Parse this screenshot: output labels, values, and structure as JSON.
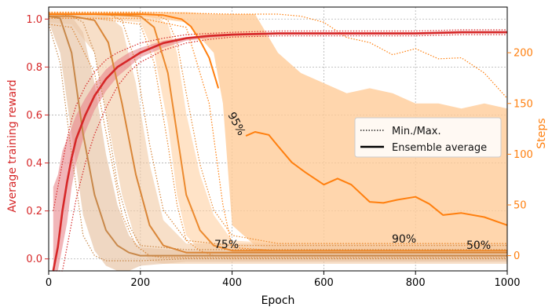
{
  "chart_data": {
    "type": "line",
    "xlabel": "Epoch",
    "ylabel_left": "Average training reward",
    "ylabel_right": "Steps",
    "xlim": [
      0,
      1000
    ],
    "ylim_left": [
      -0.05,
      1.05
    ],
    "ylim_right": [
      -15,
      245
    ],
    "xticks": [
      0,
      200,
      400,
      600,
      800,
      1000
    ],
    "yticks_left": [
      0.0,
      0.2,
      0.4,
      0.6,
      0.8,
      1.0
    ],
    "yticks_right": [
      0,
      50,
      100,
      150,
      200
    ],
    "grid": true,
    "colors": {
      "reward": "#d62728",
      "reward_band": "#e8858a",
      "steps_50": "#c8884a",
      "steps_75": "#d98638",
      "steps_90": "#ec8a2e",
      "steps_95": "#ff7f0e",
      "steps_band": "#ffcc99"
    },
    "legend": {
      "location": "center-right",
      "entries": [
        {
          "label": "Min./Max.",
          "style": "dotted"
        },
        {
          "label": "Ensemble average",
          "style": "solid"
        }
      ]
    },
    "annotations": [
      "95%",
      "75%",
      "90%",
      "50%"
    ],
    "series": [
      {
        "name": "Average training reward",
        "axis": "left",
        "x": [
          10,
          20,
          30,
          40,
          50,
          60,
          80,
          100,
          125,
          150,
          175,
          200,
          250,
          300,
          350,
          400,
          500,
          600,
          700,
          800,
          900,
          1000
        ],
        "values": [
          -0.05,
          0.05,
          0.2,
          0.32,
          0.42,
          0.5,
          0.6,
          0.68,
          0.75,
          0.8,
          0.83,
          0.86,
          0.9,
          0.92,
          0.93,
          0.935,
          0.94,
          0.94,
          0.94,
          0.94,
          0.945,
          0.945
        ],
        "band_low": [
          -0.05,
          -0.05,
          0.05,
          0.15,
          0.3,
          0.4,
          0.53,
          0.62,
          0.7,
          0.76,
          0.8,
          0.84,
          0.88,
          0.91,
          0.92,
          0.93,
          0.935,
          0.935,
          0.935,
          0.935,
          0.94,
          0.94
        ],
        "band_high": [
          0.3,
          0.35,
          0.45,
          0.5,
          0.55,
          0.6,
          0.67,
          0.73,
          0.79,
          0.83,
          0.86,
          0.88,
          0.91,
          0.925,
          0.935,
          0.94,
          0.945,
          0.945,
          0.945,
          0.945,
          0.95,
          0.95
        ],
        "min": [
          -0.05,
          -0.05,
          -0.05,
          0.05,
          0.15,
          0.25,
          0.4,
          0.52,
          0.63,
          0.72,
          0.78,
          0.82,
          0.87,
          0.9,
          0.915,
          0.925,
          0.93,
          0.93,
          0.93,
          0.93,
          0.935,
          0.935
        ],
        "max": [
          0.2,
          0.3,
          0.4,
          0.5,
          0.58,
          0.64,
          0.72,
          0.78,
          0.83,
          0.86,
          0.88,
          0.9,
          0.92,
          0.935,
          0.94,
          0.945,
          0.95,
          0.95,
          0.95,
          0.95,
          0.955,
          0.955
        ]
      },
      {
        "name": "50%",
        "axis": "right",
        "x": [
          0,
          25,
          50,
          75,
          100,
          125,
          150,
          175,
          200,
          300,
          400,
          600,
          800,
          1000
        ],
        "values": [
          236,
          234,
          200,
          120,
          60,
          25,
          10,
          3,
          0,
          0,
          0,
          0,
          0,
          0
        ],
        "band_low": [
          230,
          200,
          120,
          40,
          5,
          -10,
          -15,
          -15,
          -10,
          -6,
          -6,
          -6,
          -6,
          -6
        ],
        "band_high": [
          238,
          238,
          236,
          220,
          170,
          100,
          50,
          20,
          8,
          5,
          5,
          5,
          5,
          5
        ],
        "min": [
          228,
          190,
          100,
          20,
          0,
          -5,
          -5,
          -5,
          -5,
          -3,
          -3,
          -3,
          -3,
          -3
        ],
        "max": [
          238,
          238,
          236,
          230,
          200,
          140,
          70,
          30,
          10,
          6,
          6,
          6,
          6,
          6
        ]
      },
      {
        "name": "75%",
        "axis": "right",
        "x": [
          0,
          50,
          100,
          130,
          160,
          190,
          220,
          250,
          300,
          400,
          600,
          800,
          1000
        ],
        "values": [
          236,
          236,
          232,
          210,
          150,
          80,
          30,
          10,
          3,
          3,
          3,
          3,
          3
        ],
        "band_low": [
          230,
          228,
          200,
          130,
          60,
          15,
          -5,
          -8,
          -8,
          -8,
          -8,
          -8,
          -8
        ],
        "band_high": [
          238,
          238,
          238,
          236,
          225,
          170,
          90,
          35,
          12,
          12,
          12,
          12,
          12
        ],
        "min": [
          228,
          225,
          180,
          110,
          40,
          10,
          0,
          -2,
          -2,
          -2,
          -2,
          -2,
          -2
        ],
        "max": [
          238,
          238,
          238,
          238,
          232,
          190,
          110,
          45,
          15,
          10,
          10,
          10,
          10
        ]
      },
      {
        "name": "90%",
        "axis": "right",
        "x": [
          0,
          100,
          200,
          230,
          260,
          280,
          300,
          330,
          360,
          400,
          500,
          600,
          800,
          1000
        ],
        "values": [
          238,
          238,
          236,
          225,
          180,
          120,
          60,
          25,
          10,
          5,
          5,
          5,
          5,
          5
        ],
        "band_low": [
          234,
          234,
          230,
          200,
          130,
          60,
          20,
          5,
          0,
          -5,
          -5,
          -5,
          -5,
          -5
        ],
        "band_high": [
          239,
          239,
          239,
          237,
          228,
          200,
          140,
          80,
          40,
          15,
          12,
          12,
          12,
          12
        ],
        "min": [
          234,
          234,
          228,
          190,
          110,
          50,
          15,
          5,
          0,
          0,
          0,
          0,
          0,
          0
        ],
        "max": [
          239,
          239,
          239,
          238,
          232,
          210,
          160,
          90,
          45,
          20,
          12,
          12,
          12,
          12
        ]
      },
      {
        "name": "95%",
        "axis": "right",
        "x": [
          0,
          100,
          200,
          250,
          290,
          310,
          330,
          350,
          370
        ],
        "values": [
          238,
          238,
          238,
          237,
          233,
          226,
          212,
          195,
          165
        ],
        "x2": [
          430,
          450,
          480,
          500,
          530,
          560,
          600,
          630,
          660,
          700,
          730,
          760,
          800,
          830,
          860,
          900,
          950,
          1000
        ],
        "values2": [
          118,
          122,
          119,
          108,
          92,
          82,
          70,
          76,
          70,
          53,
          52,
          55,
          58,
          51,
          40,
          42,
          38,
          30
        ],
        "band_x": [
          0,
          200,
          300,
          360,
          380,
          400,
          450,
          500,
          550,
          600,
          650,
          700,
          750,
          800,
          850,
          900,
          950,
          1000
        ],
        "band_low": [
          236,
          236,
          230,
          200,
          150,
          30,
          10,
          5,
          3,
          3,
          3,
          3,
          3,
          3,
          3,
          3,
          3,
          3
        ],
        "band_high": [
          240,
          240,
          240,
          238,
          238,
          238,
          238,
          200,
          180,
          170,
          160,
          165,
          160,
          150,
          150,
          145,
          150,
          145
        ],
        "min_x": [
          0,
          200,
          300,
          350,
          380,
          400,
          500,
          600,
          800,
          1000
        ],
        "min": [
          234,
          234,
          225,
          150,
          50,
          8,
          5,
          5,
          5,
          5
        ],
        "max_x": [
          0,
          200,
          400,
          500,
          550,
          600,
          650,
          700,
          750,
          800,
          850,
          900,
          950,
          1000
        ],
        "max": [
          240,
          240,
          238,
          238,
          236,
          230,
          215,
          210,
          198,
          204,
          194,
          195,
          180,
          155
        ]
      }
    ]
  }
}
